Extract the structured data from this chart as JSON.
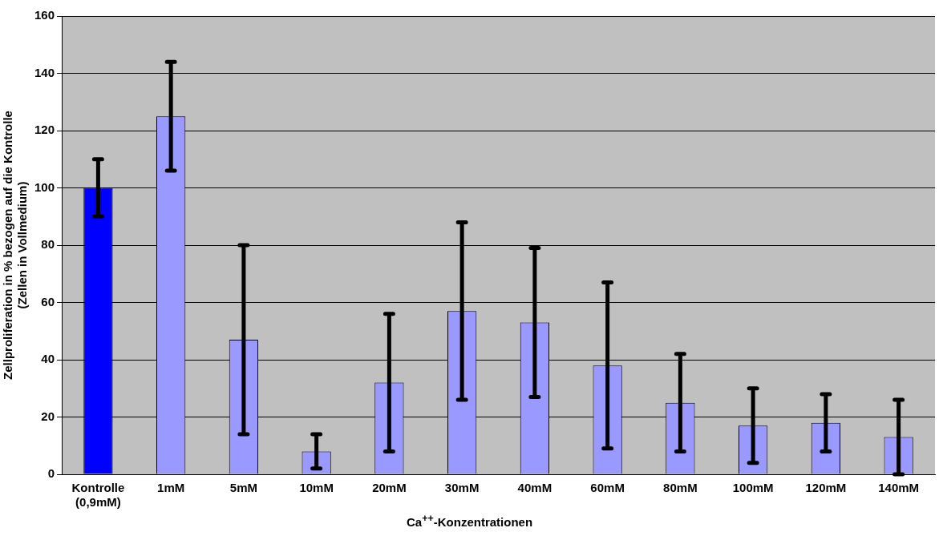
{
  "chart_data": {
    "type": "bar",
    "categories": [
      "Kontrolle\n(0,9mM)",
      "1mM",
      "5mM",
      "10mM",
      "20mM",
      "30mM",
      "40mM",
      "60mM",
      "80mM",
      "100mM",
      "120mM",
      "140mM"
    ],
    "values": [
      100,
      125,
      47,
      8,
      32,
      57,
      53,
      38,
      25,
      17,
      18,
      13
    ],
    "colors": [
      "#0000ff",
      "#9999ff",
      "#9999ff",
      "#9999ff",
      "#9999ff",
      "#9999ff",
      "#9999ff",
      "#9999ff",
      "#9999ff",
      "#9999ff",
      "#9999ff",
      "#9999ff"
    ],
    "errors": [
      [
        90,
        110
      ],
      [
        106,
        144
      ],
      [
        14,
        80
      ],
      [
        2,
        14
      ],
      [
        8,
        56
      ],
      [
        26,
        88
      ],
      [
        27,
        79
      ],
      [
        9,
        67
      ],
      [
        8,
        42
      ],
      [
        4,
        30
      ],
      [
        8,
        28
      ],
      [
        0,
        26
      ]
    ],
    "xlabel": "Ca$^{++}$-Konzentrationen",
    "ylabel": "Zellproliferation in % bezogen auf die Kontrolle\n(Zellen in Vollmedium)",
    "ylim": [
      0,
      160
    ],
    "yticks": [
      0,
      20,
      40,
      60,
      80,
      100,
      120,
      140,
      160
    ],
    "grid": "y"
  }
}
